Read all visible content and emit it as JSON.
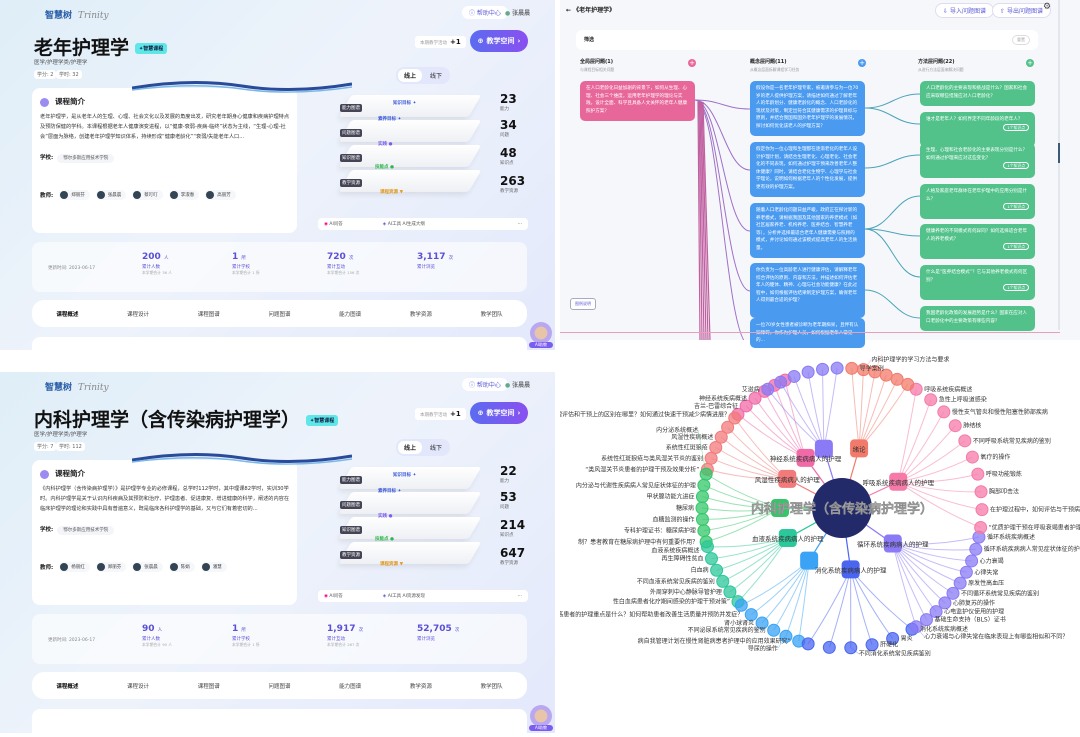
{
  "common": {
    "logo": "智慧树",
    "logo_script": "Trinity",
    "help": "帮助中心",
    "user": "张晨晨",
    "badge": "✦智慧课程",
    "breadcrumb": "医学/护理学类/护理学",
    "activity_label": "本期教学活动",
    "activity_value": "+1",
    "space_button": "教学空间",
    "toggle_online": "线上",
    "toggle_offline": "线下",
    "intro_tab": "课程简介",
    "school_label": "学校:",
    "school": "鄂尔多斯应用技术学院",
    "teachers_label": "教师:",
    "ai_qa": "AI问答",
    "ai_tool": "AI工具",
    "layers": [
      "能力图谱",
      "问题图谱",
      "知识图谱",
      "教学资源"
    ],
    "layer_nodes": [
      "知识目标",
      "素养目标",
      "实践",
      "技能点",
      "课程资源"
    ],
    "stat_labels": [
      "能力",
      "问题",
      "知识点",
      "教学资源"
    ],
    "update": "更新时间: 2023-06-17",
    "sum_labels": [
      "累计人数",
      "累计学校",
      "累计互动",
      "累计浏览"
    ],
    "tabs": [
      "课程概述",
      "课程设计",
      "课程图谱",
      "问题图谱",
      "能力图谱",
      "教学资源",
      "教学团队"
    ],
    "avatar_label": "AI助教"
  },
  "panels": [
    {
      "title": "老年护理学",
      "credit": "学分: 2",
      "hours": "学时: 32",
      "intro": "老年护理学，是从老年人的生理、心理、社会文化以及发展的角度出发，研究老年期身心健康和疾病护理特点及预防保健的学科。本课程根据老年人健康演变进程，以“健康-衰弱-疾病-临终”状态为主线，“生理-心理-社会”层面为脉络，创建老年护理学知识体系，持续形成“健康老龄化”“衰弱/失能老年人口...",
      "teachers": [
        "郑丽芬",
        "张晨晨",
        "蔡叮叮",
        "李淑春",
        "高丽芳"
      ],
      "ai_action": "AI生成大纲",
      "stats": [
        "23",
        "34",
        "48",
        "263"
      ],
      "sums": [
        {
          "v": "200",
          "u": "人",
          "s": "本学期合计 36 人"
        },
        {
          "v": "1",
          "u": "所",
          "s": "本学期合计 1 所"
        },
        {
          "v": "720",
          "u": "次",
          "s": "本学期合计 156 次"
        },
        {
          "v": "3,117",
          "u": "次",
          "s": ""
        }
      ]
    },
    {
      "title": "内科护理学（含传染病护理学）",
      "credit": "学分: 7",
      "hours": "学时: 112",
      "intro": "《内科护理学（含传染病护理学）》是护理学专业的必修课程，总学时112学时，其中理课82学时，实训30学时。内科护理学是关于认识内科疾病及其预防和治疗、护理患者、促进康复、增进健康的科学，阐述的内容在临床护理学的理论和实践中具有普遍意义，既是临床各科护理学的基础，又与它们有着密切的...",
      "teachers": [
        "杨丽红",
        "郑丽芬",
        "张晨晨",
        "陈娟",
        "潘慧"
      ],
      "ai_action": "AI资源发现",
      "stats": [
        "22",
        "53",
        "214",
        "647"
      ],
      "sums": [
        {
          "v": "90",
          "u": "人",
          "s": "本学期合计 90 人"
        },
        {
          "v": "1",
          "u": "所",
          "s": "本学期合计 1 所"
        },
        {
          "v": "1,917",
          "u": "次",
          "s": "本学期合计 267 次"
        },
        {
          "v": "52,705",
          "u": "次",
          "s": ""
        }
      ]
    }
  ],
  "question_map": {
    "title": "《老年护理学》",
    "import": "导入问题图谱",
    "export": "导出问题图谱",
    "filter": "筛选",
    "reset": "重置",
    "legend": "图例说明",
    "columns": [
      {
        "title": "全局层问题(1)",
        "sub": "与课程目标相关问题",
        "color": "#e8679a"
      },
      {
        "title": "概念层问题(11)",
        "sub": "从概念层面拆解课程学习任务",
        "color": "#4a9af0"
      },
      {
        "title": "方法层问题(22)",
        "sub": "从进行方法层面来解决问题",
        "color": "#52c28a"
      }
    ],
    "global": [
      "在人口老龄化日益加剧的背景下，如何从生理、心理、社会三个维度，运用老年护理学的理论与实践，设计全面、科学且具备人文关怀的老年人健康照护方案？"
    ],
    "concept": [
      "假设你是一名老年护理专家，被邀请参与为一位70岁的老人提供护理方案，请描述如何通过了解老年人的年龄划分、健康老龄化的概念、人口老龄化的现状及对策，制定出符合其健康需求的护理目标与原则，并结合我国和国外老年护理学的发展情况，探讨如何优化该老人的护理方案？",
      "假定你为一位心理和生理都在逐渐老化的老年人设计护理计划，请结合生理老化、心理老化、社会老化的不同表现，如何通过护理干预来改善老年人整体健康？同时，请结合老化生物学、心理学与社会学理论，说明如何根据老年人的个性化发展，提供更有效的护理方案。",
      "随着人口老龄化问题日益严峻，政府正在探讨新的养老模式，请根据我国及其他国家的养老模式（如社区居家养老、机构养老、医养结合、智慧养老等），分析并选择最适合老年人健康需要与照顾的模式，并讨论如何通过该模式提高老年人的生活质量。",
      "你负责为一位高龄老人进行健康评估，请解释老年综合评估的原则、内容和方法，并描述如何评估老年人的躯体、精神、心理与社会功能健康？在此过程中，如何根据评估结果制定护理方案，确保老年人得到最合适的护理？",
      "一位70岁女性患者被诊断为老年期痴呆，且伴有认知障碍，你作为护理人员，如何根据老年人常见的..."
    ],
    "method": [
      {
        "q": "人口老龄化的主要表现和挑战是什么？国家和社会应采取哪些措施应对人口老龄化？",
        "tag": ""
      },
      {
        "q": "谁才是老年人？如何界定不同年龄段的老年人？",
        "tag": "1个知识点"
      },
      {
        "q": "生理、心理和社会老龄化的主要表现分别是什么？如何通过护理来应对这些变化？",
        "tag": "1个知识点"
      },
      {
        "q": "人格及家庭老年群体在老年护理中的应用分别是什么？",
        "tag": "1个知识点"
      },
      {
        "q": "健康养老的不同模式有何异同？如何选择适合老年人的养老模式？",
        "tag": "1个知识点"
      },
      {
        "q": "什么是“医养结合模式”？它与其他养老模式有何区别？",
        "tag": "1个知识点"
      },
      {
        "q": "我国老龄化政策的发展趋势是什么？国家在应对人口老龄化中的主要政策有哪些内容？",
        "tag": ""
      }
    ]
  },
  "mind_map": {
    "root": "内科护理学（含传染病护理学）",
    "branches": [
      {
        "name": "神经系统疾病病人的护理",
        "color": "#f06aa8",
        "a0": 222,
        "a1": 246,
        "leaves": [
          "理评估和干预上的区别在哪里？如何通过快速干预减少病情进展？",
          "吉兰-巴雷综合征",
          "神经系统疾病概述"
        ]
      },
      {
        "name": "风湿性疾病病人的护理",
        "color": "#f27a7a",
        "a0": 196,
        "a1": 220,
        "leaves": [
          "“类风湿关节炎患者的护理干预及效果分析”",
          "系统性红斑狼疮与类风湿关节炎的鉴别",
          "系统性红斑狼疮",
          "风湿性疾病概述"
        ]
      },
      {
        "name": "",
        "color": "#33c76a",
        "a0": 166,
        "a1": 194,
        "leaves": [
          "制？患者教育在糖尿病护理中有何重要作用？",
          "专科护理证书：糖尿病护理",
          "血糖监测的操作",
          "糖尿病",
          "甲状腺功能亢进症",
          "内分泌与代谢性疾病病人常见症状体征的护理",
          "内分泌系统概述"
        ]
      },
      {
        "name": "血液系统疾病病人的护理",
        "color": "#2cc79a",
        "a0": 138,
        "a1": 164,
        "leaves": [
          "性白血病患者化疗期间感染的护理干预对策”",
          "外周穿刺中心静脉导管护理",
          "不同血液系统常见疾病的鉴别",
          "白血病",
          "再生障碍性贫血",
          "血液系统疾病概述"
        ]
      },
      {
        "name": "",
        "color": "#3aa3f5",
        "a0": 108,
        "a1": 136,
        "leaves": [
          "病自我管理计划在慢性肾脏病患者护理中的应用效果研究”",
          "导尿的操作",
          "不同泌尿系统常见疾病的鉴别",
          "肾小球肾炎",
          "消化性溃疡患者的护理重点是什么？如何帮助患者改善生活质量并预防并发症？"
        ]
      },
      {
        "name": "消化系统疾病病人的护理",
        "color": "#4a66f0",
        "a0": 60,
        "a1": 104,
        "leaves": [
          "消化系统疾病概述",
          "胃炎",
          "肝硬化",
          "不同消化系统常见疾病鉴别"
        ]
      },
      {
        "name": "循环系统疾病病人的护理",
        "color": "#8a7af5",
        "a0": 12,
        "a1": 58,
        "leaves": [
          "循环系统疾病概述",
          "循环系统疾病病人常见症状体征的护理",
          "心力衰竭",
          "心律失常",
          "原发性高血压",
          "不同循环系统常见疾病的鉴别",
          "心肺复苏的操作",
          "心电监护仪使用的护理",
          "基础生命支持（BLS）证书",
          "心力衰竭与心律失常在临床表现上有哪些相似和不同？"
        ]
      },
      {
        "name": "呼吸系统疾病病人的护理",
        "color": "#f57aa8",
        "a0": -58,
        "a1": 8,
        "leaves": [
          "呼吸系统疾病概述",
          "急性上呼吸道感染",
          "慢性支气管炎和慢性阻塞性肺部疾病",
          "肺结核",
          "不同呼吸系统常见疾病的鉴别",
          "氧疗的操作",
          "呼吸功能锻炼",
          "胸部叩击法",
          "在护理过程中，如何评估与干预病人呼吸系统",
          "“优质护理干预在呼吸衰竭患者护理中的应用”"
        ]
      },
      {
        "name": "绪论",
        "color": "#f27a6a",
        "a0": -86,
        "a1": -62,
        "leaves": [
          "导学案例",
          "内科护理学的学习方法与要求",
          "“从文献看内科护理学在中国的演进发展”"
        ]
      },
      {
        "name": "",
        "color": "#8a7af5",
        "a0": -122,
        "a1": -92,
        "leaves": [
          "艾滋病"
        ]
      }
    ]
  }
}
